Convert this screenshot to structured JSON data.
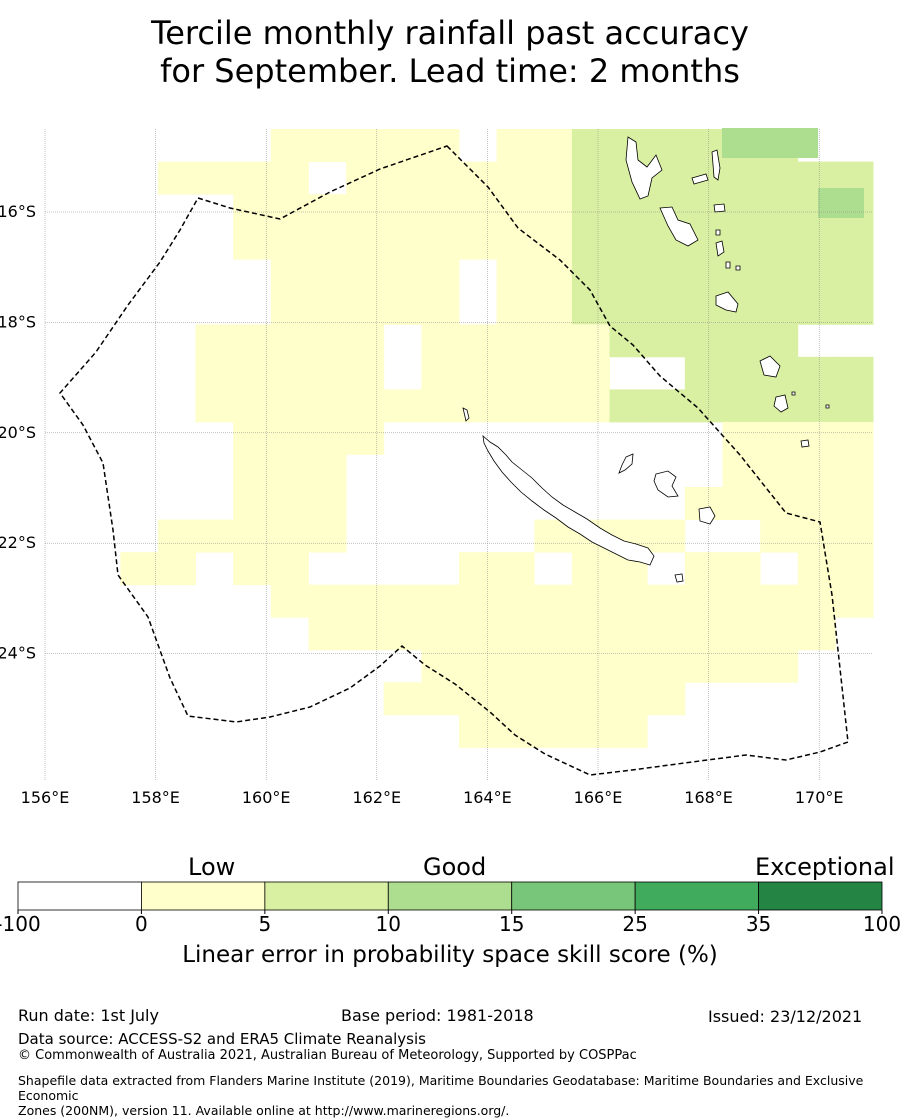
{
  "title": {
    "line1": "Tercile monthly rainfall past accuracy",
    "line2": "for September. Lead time: 2 months"
  },
  "map": {
    "lon_ticks": [
      "156°E",
      "158°E",
      "160°E",
      "162°E",
      "164°E",
      "166°E",
      "168°E",
      "170°E"
    ],
    "lat_ticks": [
      "16°S",
      "18°S",
      "20°S",
      "22°S",
      "24°S"
    ],
    "extent_deg": {
      "lon": [
        156,
        171.4
      ],
      "lat": [
        -26.3,
        -14.5
      ]
    },
    "grid_step_deg": 0.8333,
    "rows": [
      "0000001111101133333300",
      "0001111011111133333333",
      "0000011111111133333333",
      "0000011111111133333333",
      "0000001111101133333333",
      "0000001111101133333333",
      "0000111110111113333300",
      "0000111110111110033333",
      "0000111111111113333333",
      "0000011110000000001111",
      "0000011100000000001111",
      "0000011100000000011111",
      "0001111100000111100111",
      "0011011000011011011011",
      "0000001111111111111111",
      "0000000111111111111110",
      "0000000000111111111100",
      "0000000001111111100000",
      "0000000000011111000000",
      "0000000000000000000000"
    ],
    "colors": {
      "low": "#ffffcc",
      "good": "#d9f0a3",
      "good_plus": "#addd8e",
      "no_skill": "#ffffff"
    }
  },
  "colorbar": {
    "bins": [
      {
        "from": "-100",
        "to": "0",
        "color": "#ffffff"
      },
      {
        "from": "0",
        "to": "5",
        "color": "#ffffcc"
      },
      {
        "from": "5",
        "to": "10",
        "color": "#d9f0a3"
      },
      {
        "from": "10",
        "to": "15",
        "color": "#addd8e"
      },
      {
        "from": "15",
        "to": "25",
        "color": "#78c679"
      },
      {
        "from": "25",
        "to": "35",
        "color": "#41ab5d"
      },
      {
        "from": "35",
        "to": "100",
        "color": "#238443"
      }
    ],
    "ticks": [
      "-100",
      "0",
      "5",
      "10",
      "15",
      "25",
      "35",
      "100"
    ],
    "categories": [
      "Low",
      "Good",
      "Exceptional"
    ],
    "caption": "Linear error in probability space skill score (%)"
  },
  "footer": {
    "run_date": "Run date: 1st July",
    "base_period": "Base period: 1981-2018",
    "issued": "Issued: 23/12/2021",
    "data_source": "Data source: ACCESS-S2 and ERA5 Climate Reanalysis",
    "copyright": "© Commonwealth of Australia 2021, Australian Bureau of Meteorology, Supported by COSPPac",
    "shapefile_line1": "Shapefile data extracted from Flanders Marine Institute (2019), Maritime Boundaries Geodatabase: Maritime Boundaries and Exclusive Economic",
    "shapefile_line2": "Zones (200NM), version 11. Available online at http://www.marineregions.org/."
  }
}
